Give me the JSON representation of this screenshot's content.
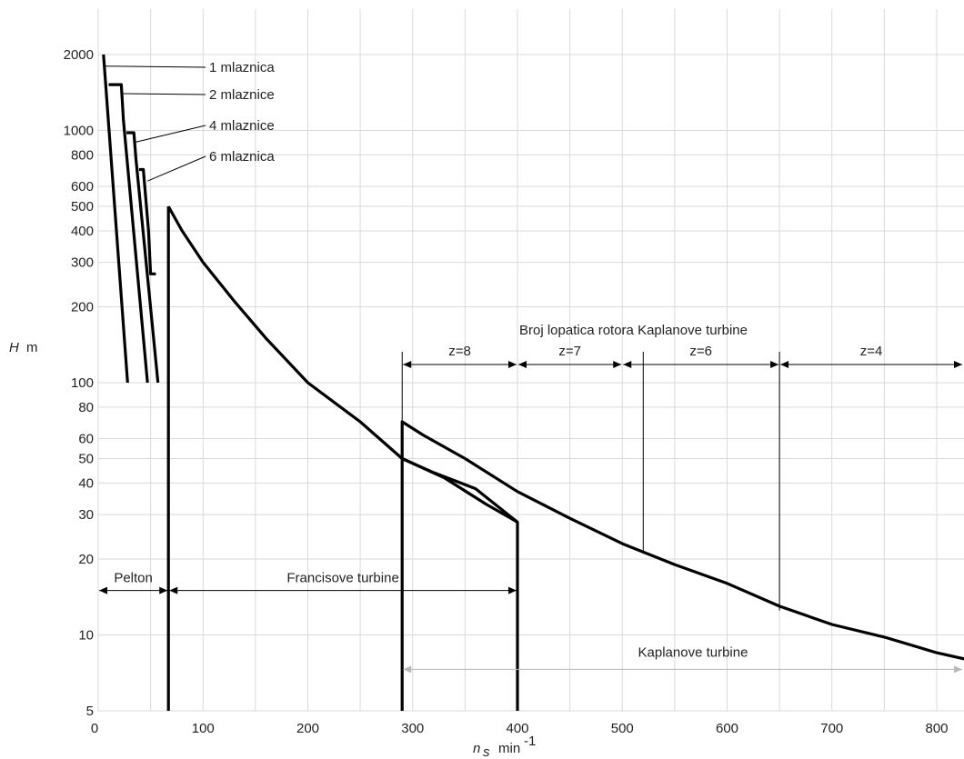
{
  "chart_data": {
    "type": "line",
    "title": "",
    "xlabel": "n",
    "xlabel_sub": "s",
    "xunit": "min",
    "xunit_sup": "-1",
    "ylabel": "H",
    "yunit": "m",
    "xlim": [
      0,
      840
    ],
    "ylim": [
      5,
      2300
    ],
    "yscale": "log",
    "grid": true,
    "x_ticks": [
      0,
      100,
      200,
      300,
      400,
      500,
      600,
      700,
      800
    ],
    "y_ticks": [
      5,
      10,
      20,
      30,
      40,
      50,
      60,
      80,
      100,
      200,
      300,
      400,
      500,
      600,
      800,
      1000,
      2000
    ],
    "series": [
      {
        "key": "pelton-1",
        "points": [
          [
            5,
            2000
          ],
          [
            28,
            100
          ]
        ]
      },
      {
        "key": "pelton-2",
        "points": [
          [
            10,
            1520
          ],
          [
            22,
            1520
          ],
          [
            24,
            1100
          ],
          [
            47,
            100
          ]
        ]
      },
      {
        "key": "pelton-4",
        "points": [
          [
            27,
            980
          ],
          [
            34,
            980
          ],
          [
            36,
            770
          ],
          [
            57,
            100
          ]
        ]
      },
      {
        "key": "pelton-6",
        "points": [
          [
            39,
            700
          ],
          [
            43,
            700
          ],
          [
            48,
            400
          ],
          [
            50,
            270
          ],
          [
            55,
            270
          ]
        ]
      },
      {
        "key": "francis-left",
        "points": [
          [
            67,
            5
          ],
          [
            67,
            500
          ]
        ]
      },
      {
        "key": "francis-upper",
        "points": [
          [
            67,
            500
          ],
          [
            80,
            400
          ],
          [
            100,
            300
          ],
          [
            130,
            210
          ],
          [
            160,
            150
          ],
          [
            200,
            100
          ],
          [
            250,
            70
          ],
          [
            290,
            50
          ],
          [
            330,
            42
          ],
          [
            370,
            33
          ],
          [
            400,
            28
          ],
          [
            400,
            5
          ]
        ]
      },
      {
        "key": "kaplan-upper",
        "points": [
          [
            290,
            5
          ],
          [
            290,
            70
          ],
          [
            310,
            62
          ],
          [
            350,
            50
          ],
          [
            400,
            37
          ],
          [
            450,
            29
          ],
          [
            500,
            23
          ],
          [
            550,
            19
          ],
          [
            600,
            16
          ],
          [
            650,
            13
          ],
          [
            700,
            11
          ],
          [
            750,
            9.8
          ],
          [
            800,
            8.5
          ],
          [
            840,
            7.8
          ]
        ]
      },
      {
        "key": "kaplan-lower",
        "points": [
          [
            290,
            50
          ],
          [
            320,
            44
          ],
          [
            360,
            38
          ],
          [
            400,
            28
          ]
        ]
      }
    ],
    "annotations": {
      "nozzles": [
        {
          "label": "1 mlaznica",
          "at": [
            5,
            1800
          ]
        },
        {
          "label": "2 mlaznice",
          "at": [
            24,
            1400
          ]
        },
        {
          "label": "4 mlaznice",
          "at": [
            36,
            900
          ]
        },
        {
          "label": "6 mlaznica",
          "at": [
            47,
            630
          ]
        }
      ],
      "blade_title": "Broj lopatica rotora Kaplanove turbine",
      "blade_ranges": [
        {
          "label": "z=8",
          "from": 290,
          "to": 400
        },
        {
          "label": "z=7",
          "from": 400,
          "to": 500
        },
        {
          "label": "z=6",
          "from": 500,
          "to": 650
        },
        {
          "label": "z=4",
          "from": 650,
          "to": 840
        }
      ],
      "blade_markers": [
        {
          "x": 290,
          "from": 160,
          "to": 5
        },
        {
          "x": 520,
          "from": 150,
          "to": 21
        },
        {
          "x": 650,
          "from": 160,
          "to": 12.5
        }
      ],
      "ranges": [
        {
          "label": "Pelton",
          "from": 0,
          "to": 67,
          "y": 15
        },
        {
          "label": "Francisove turbine",
          "from": 67,
          "to": 400,
          "y": 15
        },
        {
          "label": "Kaplanove turbine",
          "from": 290,
          "to": 840,
          "y": 7.3
        }
      ]
    }
  }
}
